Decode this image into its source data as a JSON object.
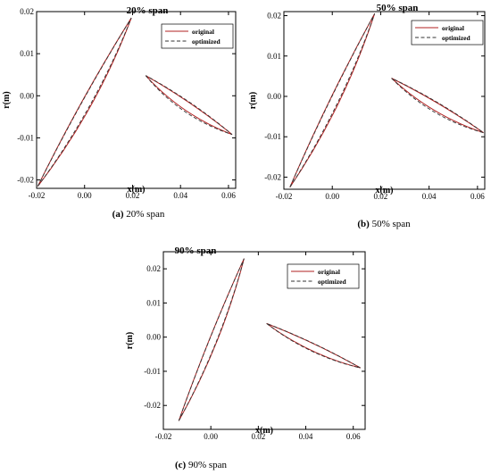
{
  "figure": {
    "legend_entries": [
      "original",
      "optimized"
    ],
    "colors": {
      "original": "#b22222",
      "optimized": "#333333"
    }
  },
  "chart_data": [
    {
      "type": "line",
      "id": "a",
      "title": "20% span",
      "caption_letter": "(a)",
      "caption_text": " 20% span",
      "xlabel": "x(m)",
      "ylabel": "r(m)",
      "xlim": [
        -0.02,
        0.063
      ],
      "ylim": [
        -0.022,
        0.02
      ],
      "xticks": [
        -0.02,
        0,
        0.02,
        0.04,
        0.06
      ],
      "xtick_labels": [
        "-0.02",
        "0.00",
        "0.02",
        "0.04",
        "0.06"
      ],
      "yticks": [
        -0.02,
        -0.01,
        0,
        0.01,
        0.02
      ],
      "ytick_labels": [
        "-0.02",
        "-0.01",
        "0.00",
        "0.01",
        "0.02"
      ],
      "legend_position": "top-right",
      "series": [
        {
          "name": "original",
          "blades": [
            {
              "le": [
                -0.0195,
                -0.0215
              ],
              "te": [
                0.0195,
                0.0185
              ],
              "bulge": 0.003
            },
            {
              "le": [
                0.0255,
                0.0048
              ],
              "te": [
                0.0615,
                -0.0092
              ],
              "bulge": 0.0026
            }
          ]
        },
        {
          "name": "optimized",
          "blades": [
            {
              "le": [
                -0.0195,
                -0.0215
              ],
              "te": [
                0.0195,
                0.0185
              ],
              "bulge": 0.0026
            },
            {
              "le": [
                0.0255,
                0.0048
              ],
              "te": [
                0.0615,
                -0.0092
              ],
              "bulge": 0.0032
            }
          ]
        }
      ]
    },
    {
      "type": "line",
      "id": "b",
      "title": "50% span",
      "caption_letter": "(b)",
      "caption_text": " 50% span",
      "xlabel": "x(m)",
      "ylabel": "r(m)",
      "xlim": [
        -0.02,
        0.063
      ],
      "ylim": [
        -0.023,
        0.021
      ],
      "xticks": [
        -0.02,
        0,
        0.02,
        0.04,
        0.06
      ],
      "xtick_labels": [
        "-0.02",
        "0.00",
        "0.02",
        "0.04",
        "0.06"
      ],
      "yticks": [
        -0.02,
        -0.01,
        0,
        0.01,
        0.02
      ],
      "ytick_labels": [
        "-0.02",
        "-0.01",
        "0.00",
        "0.01",
        "0.02"
      ],
      "legend_position": "top-right",
      "series": [
        {
          "name": "original",
          "blades": [
            {
              "le": [
                -0.0175,
                -0.0225
              ],
              "te": [
                0.0175,
                0.0205
              ],
              "bulge": 0.0028
            },
            {
              "le": [
                0.0245,
                0.0045
              ],
              "te": [
                0.0625,
                -0.009
              ],
              "bulge": 0.0024
            }
          ]
        },
        {
          "name": "optimized",
          "blades": [
            {
              "le": [
                -0.0175,
                -0.0225
              ],
              "te": [
                0.0175,
                0.0205
              ],
              "bulge": 0.0024
            },
            {
              "le": [
                0.0245,
                0.0045
              ],
              "te": [
                0.0625,
                -0.009
              ],
              "bulge": 0.003
            }
          ]
        }
      ]
    },
    {
      "type": "line",
      "id": "c",
      "title": "90% span",
      "caption_letter": "(c)",
      "caption_text": " 90% span",
      "xlabel": "x(m)",
      "ylabel": "r(m)",
      "xlim": [
        -0.02,
        0.065
      ],
      "ylim": [
        -0.027,
        0.025
      ],
      "xticks": [
        -0.02,
        0,
        0.02,
        0.04,
        0.06
      ],
      "xtick_labels": [
        "-0.02",
        "0.00",
        "0.02",
        "0.04",
        "0.06"
      ],
      "yticks": [
        -0.02,
        -0.01,
        0,
        0.01,
        0.02
      ],
      "ytick_labels": [
        "-0.02",
        "-0.01",
        "0.00",
        "0.01",
        "0.02"
      ],
      "legend_position": "top-right",
      "series": [
        {
          "name": "original",
          "blades": [
            {
              "le": [
                -0.0135,
                -0.0245
              ],
              "te": [
                0.014,
                0.023
              ],
              "bulge": 0.0024
            },
            {
              "le": [
                0.0235,
                0.004
              ],
              "te": [
                0.063,
                -0.009
              ],
              "bulge": 0.0022
            }
          ]
        },
        {
          "name": "optimized",
          "blades": [
            {
              "le": [
                -0.0135,
                -0.0245
              ],
              "te": [
                0.014,
                0.023
              ],
              "bulge": 0.0022
            },
            {
              "le": [
                0.0235,
                0.004
              ],
              "te": [
                0.063,
                -0.009
              ],
              "bulge": 0.0024
            }
          ]
        }
      ]
    }
  ]
}
